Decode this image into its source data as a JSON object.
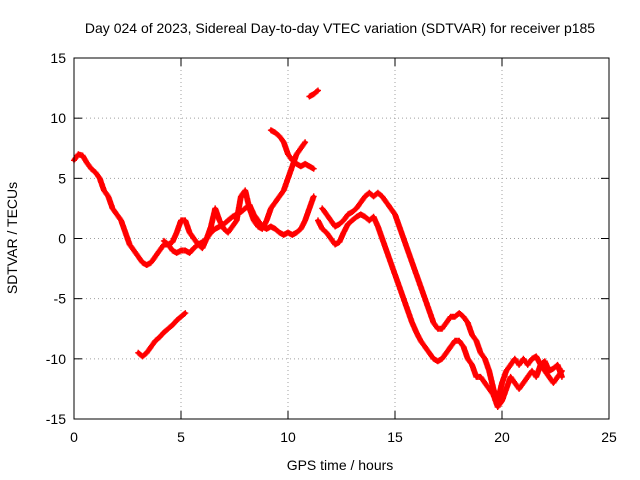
{
  "chart_data": {
    "type": "scatter",
    "title": "Day 024 of 2023, Sidereal Day-to-day VTEC variation (SDTVAR) for receiver p185",
    "xlabel": "GPS time / hours",
    "ylabel": "SDTVAR / TECUs",
    "xlim": [
      0,
      25
    ],
    "ylim": [
      -15,
      15
    ],
    "xticks": [
      "0",
      "5",
      "10",
      "15",
      "20",
      "25"
    ],
    "yticks": [
      "15",
      "10",
      "5",
      "0",
      "-5",
      "-10",
      "-15"
    ],
    "grid": true,
    "marker": "+",
    "series": [
      {
        "name": "SDTVAR trace 1",
        "color": "#ff0000",
        "points": [
          [
            0,
            6.5
          ],
          [
            0.2,
            7.0
          ],
          [
            0.4,
            6.9
          ],
          [
            0.6,
            6.3
          ],
          [
            0.8,
            5.8
          ],
          [
            1.0,
            5.5
          ],
          [
            1.2,
            5.0
          ],
          [
            1.4,
            4.0
          ],
          [
            1.6,
            3.5
          ],
          [
            1.8,
            2.5
          ],
          [
            2.0,
            2.0
          ],
          [
            2.2,
            1.5
          ],
          [
            2.4,
            0.5
          ],
          [
            2.6,
            -0.5
          ],
          [
            2.8,
            -1.0
          ],
          [
            3.0,
            -1.5
          ],
          [
            3.2,
            -2.0
          ],
          [
            3.4,
            -2.2
          ],
          [
            3.6,
            -2.0
          ],
          [
            3.8,
            -1.5
          ],
          [
            4.0,
            -1.0
          ],
          [
            4.2,
            -0.5
          ],
          [
            4.4,
            -0.5
          ],
          [
            4.6,
            -1.0
          ],
          [
            4.8,
            -1.2
          ],
          [
            5.0,
            -1.0
          ],
          [
            5.2,
            -1.0
          ],
          [
            5.4,
            -1.2
          ],
          [
            5.6,
            -0.8
          ],
          [
            5.8,
            -0.5
          ],
          [
            6.0,
            -0.3
          ],
          [
            6.2,
            0.0
          ],
          [
            6.4,
            0.5
          ],
          [
            6.6,
            0.8
          ],
          [
            6.8,
            1.0
          ],
          [
            7.0,
            1.2
          ],
          [
            7.2,
            1.5
          ],
          [
            7.4,
            1.8
          ],
          [
            7.6,
            2.0
          ],
          [
            7.8,
            2.2
          ],
          [
            8.0,
            2.5
          ],
          [
            8.2,
            2.8
          ],
          [
            8.4,
            2.0
          ],
          [
            8.6,
            1.5
          ],
          [
            8.8,
            1.0
          ],
          [
            9.0,
            0.8
          ],
          [
            9.2,
            1.0
          ],
          [
            9.4,
            0.8
          ],
          [
            9.6,
            0.5
          ],
          [
            9.8,
            0.3
          ],
          [
            10.0,
            0.5
          ],
          [
            10.2,
            0.3
          ],
          [
            10.4,
            0.5
          ],
          [
            10.6,
            0.8
          ],
          [
            10.8,
            1.5
          ],
          [
            11.0,
            2.5
          ],
          [
            11.2,
            3.5
          ]
        ]
      },
      {
        "name": "SDTVAR trace 2",
        "color": "#ff0000",
        "points": [
          [
            4.2,
            -0.2
          ],
          [
            4.4,
            -0.5
          ],
          [
            4.6,
            -0.3
          ],
          [
            4.8,
            0.5
          ],
          [
            5.0,
            1.5
          ],
          [
            5.2,
            1.5
          ],
          [
            5.4,
            0.5
          ],
          [
            5.6,
            0.0
          ],
          [
            5.8,
            -0.5
          ],
          [
            6.0,
            -0.8
          ],
          [
            6.2,
            0.0
          ],
          [
            6.4,
            1.0
          ],
          [
            6.6,
            2.5
          ],
          [
            6.8,
            1.5
          ],
          [
            7.0,
            0.8
          ],
          [
            7.2,
            0.5
          ],
          [
            7.4,
            1.0
          ],
          [
            7.6,
            1.5
          ],
          [
            7.8,
            3.5
          ],
          [
            8.0,
            4.0
          ],
          [
            8.2,
            2.5
          ],
          [
            8.4,
            1.5
          ],
          [
            8.6,
            1.0
          ],
          [
            8.8,
            0.8
          ],
          [
            9.0,
            1.5
          ],
          [
            9.2,
            2.5
          ],
          [
            9.4,
            3.0
          ],
          [
            9.6,
            3.5
          ],
          [
            9.8,
            4.0
          ],
          [
            10.0,
            5.0
          ],
          [
            10.2,
            6.0
          ],
          [
            10.4,
            7.0
          ],
          [
            10.6,
            7.5
          ],
          [
            10.8,
            8.0
          ]
        ]
      },
      {
        "name": "SDTVAR trace 3",
        "color": "#ff0000",
        "points": [
          [
            3.0,
            -9.5
          ],
          [
            3.2,
            -9.8
          ],
          [
            3.4,
            -9.5
          ],
          [
            3.6,
            -9.0
          ],
          [
            3.8,
            -8.5
          ],
          [
            4.0,
            -8.2
          ],
          [
            4.2,
            -7.8
          ],
          [
            4.4,
            -7.5
          ],
          [
            4.6,
            -7.2
          ],
          [
            4.8,
            -6.8
          ],
          [
            5.0,
            -6.5
          ],
          [
            5.2,
            -6.2
          ]
        ]
      },
      {
        "name": "SDTVAR trace 4",
        "color": "#ff0000",
        "points": [
          [
            9.2,
            9.0
          ],
          [
            9.4,
            8.8
          ],
          [
            9.6,
            8.5
          ],
          [
            9.8,
            8.0
          ],
          [
            10.0,
            7.0
          ],
          [
            10.2,
            6.5
          ],
          [
            10.4,
            6.2
          ],
          [
            10.6,
            6.0
          ],
          [
            10.8,
            6.2
          ],
          [
            11.0,
            6.0
          ],
          [
            11.2,
            5.8
          ]
        ]
      },
      {
        "name": "SDTVAR trace 5",
        "color": "#ff0000",
        "points": [
          [
            11.0,
            11.8
          ],
          [
            11.2,
            12.0
          ],
          [
            11.4,
            12.3
          ]
        ]
      },
      {
        "name": "SDTVAR trace 6",
        "color": "#ff0000",
        "points": [
          [
            11.4,
            1.5
          ],
          [
            11.6,
            0.8
          ],
          [
            11.8,
            0.5
          ],
          [
            12.0,
            0.0
          ],
          [
            12.2,
            -0.5
          ],
          [
            12.4,
            -0.3
          ],
          [
            12.6,
            0.5
          ],
          [
            12.8,
            1.2
          ],
          [
            13.0,
            1.5
          ],
          [
            13.2,
            1.8
          ],
          [
            13.4,
            2.0
          ],
          [
            13.6,
            1.8
          ],
          [
            13.8,
            1.5
          ],
          [
            14.0,
            1.8
          ],
          [
            14.2,
            1.0
          ],
          [
            14.4,
            0.0
          ],
          [
            14.6,
            -1.0
          ],
          [
            14.8,
            -2.0
          ],
          [
            15.0,
            -3.0
          ],
          [
            15.2,
            -4.0
          ],
          [
            15.4,
            -5.0
          ],
          [
            15.6,
            -6.0
          ],
          [
            15.8,
            -7.0
          ],
          [
            16.0,
            -7.8
          ],
          [
            16.2,
            -8.5
          ],
          [
            16.4,
            -9.0
          ],
          [
            16.6,
            -9.5
          ],
          [
            16.8,
            -10.0
          ],
          [
            17.0,
            -10.2
          ],
          [
            17.2,
            -10.0
          ],
          [
            17.4,
            -9.5
          ],
          [
            17.6,
            -9.0
          ],
          [
            17.8,
            -8.5
          ],
          [
            18.0,
            -8.5
          ],
          [
            18.2,
            -9.0
          ],
          [
            18.4,
            -10.0
          ],
          [
            18.6,
            -10.5
          ],
          [
            18.8,
            -11.5
          ],
          [
            19.0,
            -11.5
          ],
          [
            19.2,
            -12.0
          ],
          [
            19.4,
            -12.5
          ],
          [
            19.6,
            -13.0
          ],
          [
            19.8,
            -14.0
          ],
          [
            20.0,
            -13.5
          ],
          [
            20.2,
            -12.5
          ],
          [
            20.4,
            -11.5
          ],
          [
            20.6,
            -12.0
          ],
          [
            20.8,
            -12.5
          ],
          [
            21.0,
            -12.0
          ],
          [
            21.2,
            -11.5
          ],
          [
            21.4,
            -11.0
          ],
          [
            21.6,
            -11.5
          ],
          [
            21.8,
            -10.5
          ],
          [
            22.0,
            -11.0
          ],
          [
            22.2,
            -11.5
          ],
          [
            22.4,
            -12.0
          ],
          [
            22.6,
            -11.5
          ],
          [
            22.8,
            -11.0
          ]
        ]
      },
      {
        "name": "SDTVAR trace 7",
        "color": "#ff0000",
        "points": [
          [
            11.6,
            2.5
          ],
          [
            11.8,
            2.0
          ],
          [
            12.0,
            1.5
          ],
          [
            12.2,
            1.0
          ],
          [
            12.4,
            1.2
          ],
          [
            12.6,
            1.5
          ],
          [
            12.8,
            2.0
          ],
          [
            13.0,
            2.2
          ],
          [
            13.2,
            2.5
          ],
          [
            13.4,
            3.0
          ],
          [
            13.6,
            3.5
          ],
          [
            13.8,
            3.8
          ],
          [
            14.0,
            3.5
          ],
          [
            14.2,
            3.8
          ],
          [
            14.4,
            3.5
          ],
          [
            14.6,
            3.0
          ],
          [
            14.8,
            2.5
          ],
          [
            15.0,
            2.0
          ],
          [
            15.2,
            1.0
          ],
          [
            15.4,
            0.0
          ],
          [
            15.6,
            -1.0
          ],
          [
            15.8,
            -2.0
          ],
          [
            16.0,
            -3.0
          ],
          [
            16.2,
            -4.0
          ],
          [
            16.4,
            -5.0
          ],
          [
            16.6,
            -6.0
          ],
          [
            16.8,
            -7.0
          ],
          [
            17.0,
            -7.5
          ],
          [
            17.2,
            -7.5
          ],
          [
            17.4,
            -7.0
          ],
          [
            17.6,
            -6.5
          ],
          [
            17.8,
            -6.5
          ],
          [
            18.0,
            -6.2
          ],
          [
            18.2,
            -6.5
          ],
          [
            18.4,
            -7.0
          ],
          [
            18.6,
            -8.0
          ],
          [
            18.8,
            -8.5
          ],
          [
            19.0,
            -9.5
          ],
          [
            19.2,
            -10.0
          ],
          [
            19.4,
            -11.0
          ],
          [
            19.6,
            -12.5
          ],
          [
            19.8,
            -13.5
          ],
          [
            20.0,
            -12.0
          ],
          [
            20.2,
            -11.0
          ],
          [
            20.4,
            -10.5
          ],
          [
            20.6,
            -10.0
          ],
          [
            20.8,
            -10.5
          ],
          [
            21.0,
            -10.0
          ],
          [
            21.2,
            -10.5
          ],
          [
            21.4,
            -10.0
          ],
          [
            21.6,
            -9.8
          ],
          [
            21.8,
            -10.5
          ],
          [
            22.0,
            -10.2
          ],
          [
            22.2,
            -11.0
          ],
          [
            22.4,
            -10.8
          ],
          [
            22.6,
            -10.5
          ],
          [
            22.8,
            -11.5
          ]
        ]
      }
    ]
  }
}
